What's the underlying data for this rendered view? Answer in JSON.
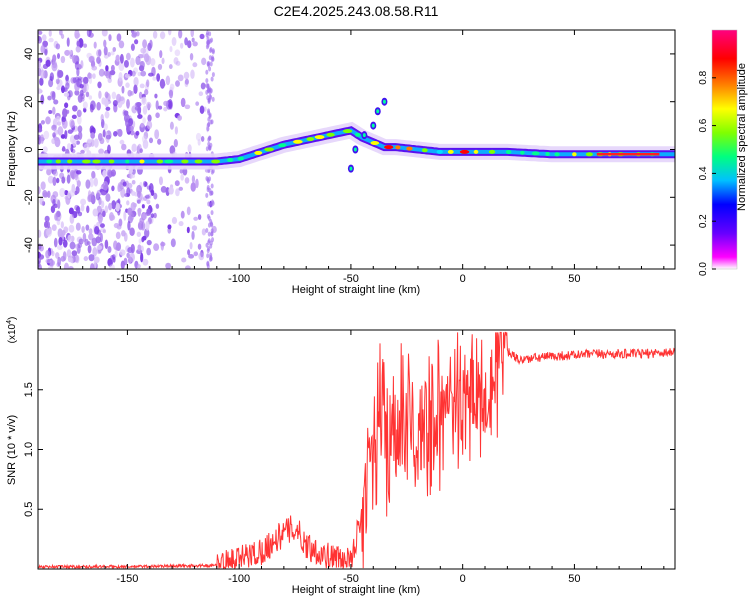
{
  "title": "C2E4.2025.243.08.58.R11",
  "chart_data": [
    {
      "type": "heatmap",
      "name": "spectrogram",
      "xlabel": "Height of straight line (km)",
      "ylabel": "Frequency (Hz)",
      "xlim": [
        -190,
        95
      ],
      "ylim": [
        -50,
        50
      ],
      "xticks": [
        -150,
        -100,
        -50,
        0,
        50
      ],
      "yticks": [
        -40,
        -20,
        0,
        20,
        40
      ],
      "colorbar": {
        "label": "Normalized spectral amplitude",
        "range": [
          0.0,
          1.0
        ],
        "ticks": [
          0.0,
          0.2,
          0.4,
          0.6,
          0.8
        ],
        "colors": [
          "#ffffff",
          "#ff00ff",
          "#6600ff",
          "#0000ff",
          "#00c0ff",
          "#00ff80",
          "#80ff00",
          "#ffff00",
          "#ff8000",
          "#ff0000",
          "#ff0080"
        ]
      },
      "ridge": {
        "x": [
          -190,
          -160,
          -130,
          -110,
          -100,
          -90,
          -80,
          -70,
          -60,
          -50,
          -45,
          -40,
          -35,
          -30,
          -20,
          -10,
          0,
          10,
          20,
          40,
          60,
          80,
          95
        ],
        "frequency": [
          -5,
          -5,
          -5,
          -5,
          -4,
          -1,
          2,
          4,
          6,
          8,
          5,
          3,
          1,
          1,
          0,
          -1,
          -1,
          -1,
          -1,
          -2,
          -2,
          -2,
          -2
        ]
      }
    },
    {
      "type": "line",
      "name": "snr",
      "xlabel": "Height of straight line (km)",
      "ylabel": "SNR (10 * v/v)",
      "y_multiplier": "(x10",
      "y_multiplier_exp": "4",
      "xlim": [
        -190,
        95
      ],
      "ylim": [
        0.0,
        2.0
      ],
      "xticks": [
        -150,
        -100,
        -50,
        0,
        50
      ],
      "yticks": [
        0.5,
        1.0,
        1.5
      ],
      "color": "#ff3333",
      "x": [
        -190,
        -150,
        -110,
        -100,
        -90,
        -80,
        -75,
        -70,
        -60,
        -50,
        -45,
        -40,
        -35,
        -30,
        -25,
        -20,
        -10,
        0,
        10,
        15,
        18,
        25,
        40,
        60,
        80,
        95
      ],
      "values": [
        0.02,
        0.02,
        0.03,
        0.08,
        0.15,
        0.3,
        0.35,
        0.2,
        0.1,
        0.05,
        0.5,
        1.1,
        1.2,
        1.0,
        1.3,
        1.1,
        1.3,
        1.45,
        1.5,
        1.7,
        1.85,
        1.75,
        1.78,
        1.8,
        1.8,
        1.82
      ]
    }
  ]
}
